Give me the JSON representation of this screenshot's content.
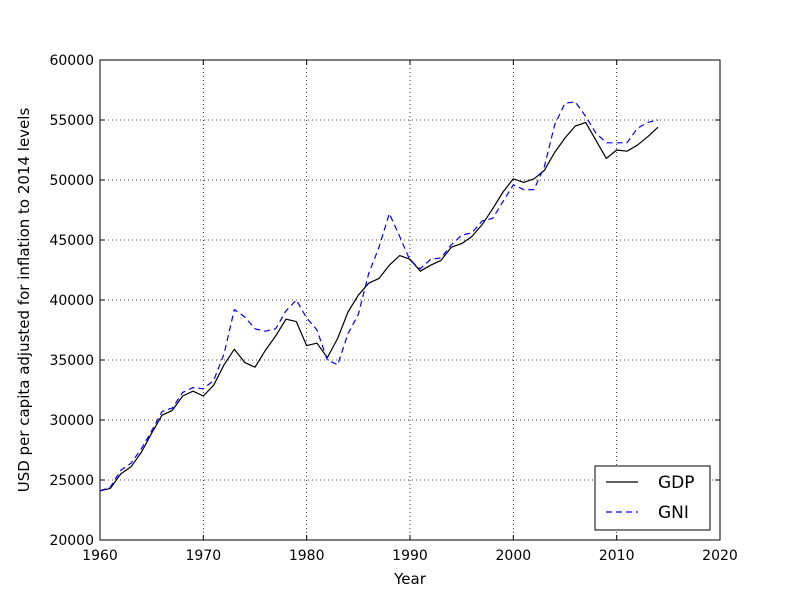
{
  "chart_data": {
    "type": "line",
    "xlabel": "Year",
    "ylabel": "USD per capita adjusted for inflation to 2014 levels",
    "xlim": [
      1960,
      2020
    ],
    "ylim": [
      20000,
      60000
    ],
    "x_ticks": [
      "1960",
      "1970",
      "1980",
      "1990",
      "2000",
      "2010",
      "2020"
    ],
    "y_ticks": [
      "20000",
      "25000",
      "30000",
      "35000",
      "40000",
      "45000",
      "50000",
      "55000",
      "60000"
    ],
    "x_tick_values": [
      1960,
      1970,
      1980,
      1990,
      2000,
      2010,
      2020
    ],
    "y_tick_values": [
      20000,
      25000,
      30000,
      35000,
      40000,
      45000,
      50000,
      55000,
      60000
    ],
    "grid": true,
    "legend_position": "lower-right",
    "x": [
      1960,
      1961,
      1962,
      1963,
      1964,
      1965,
      1966,
      1967,
      1968,
      1969,
      1970,
      1971,
      1972,
      1973,
      1974,
      1975,
      1976,
      1977,
      1978,
      1979,
      1980,
      1981,
      1982,
      1983,
      1984,
      1985,
      1986,
      1987,
      1988,
      1989,
      1990,
      1991,
      1992,
      1993,
      1994,
      1995,
      1996,
      1997,
      1998,
      1999,
      2000,
      2001,
      2002,
      2003,
      2004,
      2005,
      2006,
      2007,
      2008,
      2009,
      2010,
      2011,
      2012,
      2013,
      2014
    ],
    "series": [
      {
        "name": "GDP",
        "color": "#000000",
        "dash": "solid",
        "values": [
          24100,
          24300,
          25500,
          26100,
          27300,
          28900,
          30400,
          30800,
          32000,
          32400,
          32000,
          32900,
          34600,
          35900,
          34800,
          34400,
          35800,
          37000,
          38400,
          38200,
          36200,
          36400,
          35200,
          36800,
          39000,
          40400,
          41400,
          41800,
          42900,
          43700,
          43400,
          42400,
          42900,
          43300,
          44400,
          44700,
          45300,
          46300,
          47600,
          49000,
          50100,
          49800,
          50100,
          50800,
          52300,
          53500,
          54500,
          54800,
          53300,
          51800,
          52500,
          52400,
          52900,
          53600,
          54400
        ]
      },
      {
        "name": "GNI",
        "color": "#0000ff",
        "dash": "dashed",
        "values": [
          24100,
          24400,
          25800,
          26400,
          27600,
          29100,
          30700,
          31000,
          32300,
          32700,
          32600,
          33300,
          35500,
          39200,
          38600,
          37600,
          37400,
          37600,
          39100,
          40000,
          38500,
          37500,
          35000,
          34600,
          37200,
          38800,
          42200,
          44400,
          47200,
          45300,
          43300,
          42600,
          43400,
          43500,
          44600,
          45400,
          45600,
          46600,
          46800,
          48200,
          49600,
          49200,
          49200,
          51100,
          54600,
          56400,
          56500,
          55300,
          53900,
          53100,
          53100,
          53100,
          54300,
          54800,
          55000
        ]
      }
    ]
  }
}
